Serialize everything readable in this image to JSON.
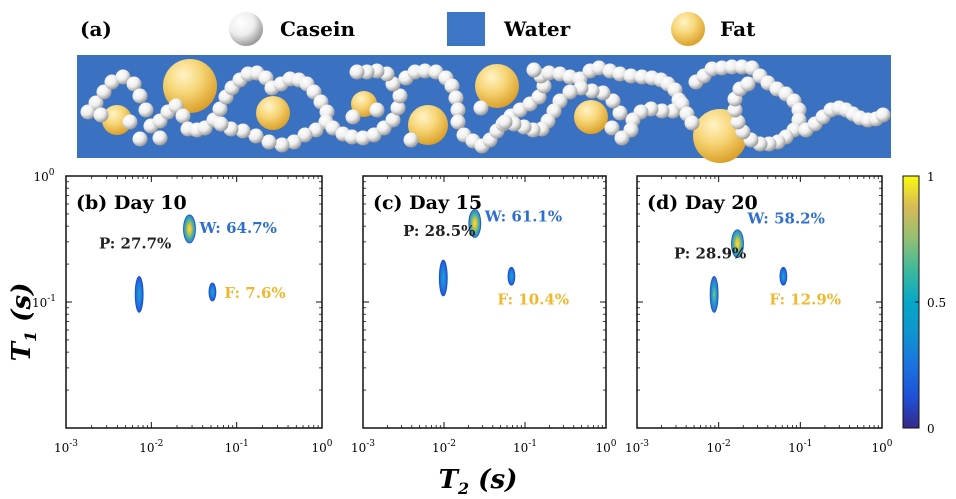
{
  "panel_a": {
    "label": "(a)",
    "legend": [
      {
        "name": "Casein",
        "shape": "white-sphere",
        "color": "#ffffff"
      },
      {
        "name": "Water",
        "shape": "blue-square",
        "color": "#3d76c4"
      },
      {
        "name": "Fat",
        "shape": "yellow-sphere",
        "color": "#f2c84b"
      }
    ],
    "colors": {
      "water": "#3a72c1",
      "casein": "#ffffff",
      "fat": "#f0c24a"
    }
  },
  "colorbar": {
    "ticks": [
      "1",
      "0.5",
      "0"
    ],
    "min": 0,
    "max": 1,
    "colormap": "parula"
  },
  "chart_data": [
    {
      "type": "scatter",
      "title": "(b) Day 10",
      "xlabel": "T2 (s)",
      "ylabel": "T1 (s)",
      "x_scale": "log",
      "y_scale": "log",
      "xlim": [
        0.001,
        1
      ],
      "ylim": [
        0.01,
        1
      ],
      "x_ticks": [
        "10-3",
        "10-2",
        "10-1",
        "100"
      ],
      "y_ticks": [
        "100",
        "10-1"
      ],
      "peaks": [
        {
          "name": "W",
          "label": "W: 64.7%",
          "percent": 64.7,
          "t2": 0.028,
          "t1": 0.38,
          "intensity": 1.0,
          "color": "#2f6fd0"
        },
        {
          "name": "P",
          "label": "P: 27.7%",
          "percent": 27.7,
          "t2": 0.0072,
          "t1": 0.115,
          "intensity": 0.55,
          "color": "#222222"
        },
        {
          "name": "F",
          "label": "F: 7.6%",
          "percent": 7.6,
          "t2": 0.052,
          "t1": 0.12,
          "intensity": 0.45,
          "color": "#f0b82d"
        }
      ]
    },
    {
      "type": "scatter",
      "title": "(c) Day 15",
      "xlabel": "T2 (s)",
      "ylabel": "T1 (s)",
      "x_scale": "log",
      "y_scale": "log",
      "xlim": [
        0.001,
        1
      ],
      "ylim": [
        0.01,
        1
      ],
      "x_ticks": [
        "10-3",
        "10-2",
        "10-1",
        "100"
      ],
      "y_ticks": [],
      "peaks": [
        {
          "name": "W",
          "label": "W: 61.1%",
          "percent": 61.1,
          "t2": 0.024,
          "t1": 0.42,
          "intensity": 1.0,
          "color": "#2f6fd0"
        },
        {
          "name": "P",
          "label": "P: 28.5%",
          "percent": 28.5,
          "t2": 0.0098,
          "t1": 0.155,
          "intensity": 0.5,
          "color": "#222222"
        },
        {
          "name": "F",
          "label": "F: 10.4%",
          "percent": 10.4,
          "t2": 0.068,
          "t1": 0.16,
          "intensity": 0.5,
          "color": "#f0b82d"
        }
      ]
    },
    {
      "type": "scatter",
      "title": "(d) Day 20",
      "xlabel": "T2 (s)",
      "ylabel": "T1 (s)",
      "x_scale": "log",
      "y_scale": "log",
      "xlim": [
        0.001,
        1
      ],
      "ylim": [
        0.01,
        1
      ],
      "x_ticks": [
        "10-3",
        "10-2",
        "10-1",
        "100"
      ],
      "y_ticks": [],
      "peaks": [
        {
          "name": "W",
          "label": "W: 58.2%",
          "percent": 58.2,
          "t2": 0.017,
          "t1": 0.29,
          "intensity": 0.95,
          "color": "#2f6fd0"
        },
        {
          "name": "P",
          "label": "P: 28.9%",
          "percent": 28.9,
          "t2": 0.0088,
          "t1": 0.115,
          "intensity": 0.65,
          "color": "#222222"
        },
        {
          "name": "F",
          "label": "F: 12.9%",
          "percent": 12.9,
          "t2": 0.062,
          "t1": 0.16,
          "intensity": 0.5,
          "color": "#f0b82d"
        }
      ]
    }
  ]
}
